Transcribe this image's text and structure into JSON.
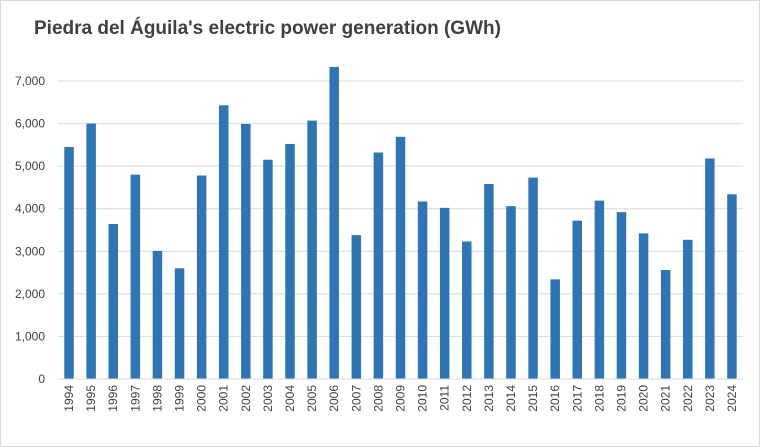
{
  "chart_data": {
    "type": "bar",
    "title": "Piedra del Águila's electric power generation (GWh)",
    "xlabel": "",
    "ylabel": "",
    "ylim": [
      0,
      7000
    ],
    "yticks": [
      0,
      1000,
      2000,
      3000,
      4000,
      5000,
      6000,
      7000
    ],
    "ytick_labels": [
      "0",
      "1,000",
      "2,000",
      "3,000",
      "4,000",
      "5,000",
      "6,000",
      "7,000"
    ],
    "categories": [
      "1994",
      "1995",
      "1996",
      "1997",
      "1998",
      "1999",
      "2000",
      "2001",
      "2002",
      "2003",
      "2004",
      "2005",
      "2006",
      "2007",
      "2008",
      "2009",
      "2010",
      "2011",
      "2012",
      "2013",
      "2014",
      "2015",
      "2016",
      "2017",
      "2018",
      "2019",
      "2020",
      "2021",
      "2022",
      "2023",
      "2024"
    ],
    "values": [
      5450,
      6000,
      3640,
      4800,
      3010,
      2600,
      4780,
      6430,
      5990,
      5150,
      5520,
      6070,
      7330,
      3380,
      5320,
      5690,
      4170,
      4020,
      3230,
      4580,
      4060,
      4730,
      2340,
      3720,
      4190,
      3920,
      3420,
      2560,
      3270,
      5180,
      4340
    ],
    "grid": true,
    "legend": "none",
    "bar_color": "#2e75b6",
    "grid_color": "#d9d9d9"
  }
}
